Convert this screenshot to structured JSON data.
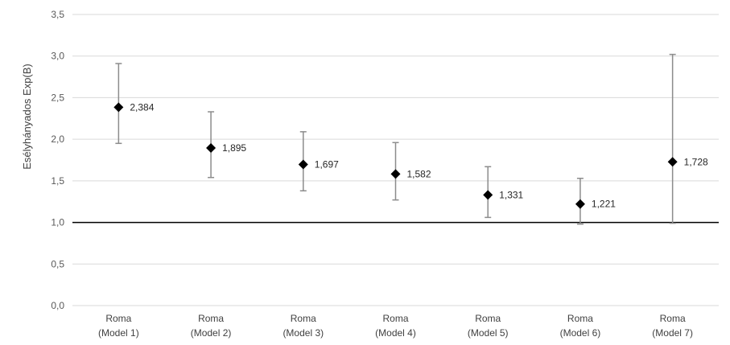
{
  "chart_data": {
    "type": "scatter",
    "subtype": "point-with-error-bars",
    "ylabel": "Esélyhányados Exp(B)",
    "ylim": [
      0,
      3.5
    ],
    "yticks": [
      0,
      0.5,
      1,
      1.5,
      2,
      2.5,
      3,
      3.5
    ],
    "ytick_labels": [
      "0,0",
      "0,5",
      "1,0",
      "1,5",
      "2,0",
      "2,5",
      "3,0",
      "3,5"
    ],
    "reference_line": 1.0,
    "grid": true,
    "legend": "none",
    "categories": [
      [
        "Roma",
        "(Model 1)"
      ],
      [
        "Roma",
        "(Model 2)"
      ],
      [
        "Roma",
        "(Model 3)"
      ],
      [
        "Roma",
        "(Model 4)"
      ],
      [
        "Roma",
        "(Model 5)"
      ],
      [
        "Roma",
        "(Model 6)"
      ],
      [
        "Roma",
        "(Model 7)"
      ]
    ],
    "values": [
      2.384,
      1.895,
      1.697,
      1.582,
      1.331,
      1.221,
      1.728
    ],
    "value_labels": [
      "2,384",
      "1,895",
      "1,697",
      "1,582",
      "1,331",
      "1,221",
      "1,728"
    ],
    "lower": [
      1.95,
      1.54,
      1.38,
      1.27,
      1.06,
      0.98,
      0.99
    ],
    "upper": [
      2.91,
      2.33,
      2.09,
      1.96,
      1.67,
      1.53,
      3.02
    ],
    "colors": {
      "marker": "#000000",
      "errorbar": "#8c8c8c",
      "grid": "#d9d9d9",
      "reference": "#000000"
    }
  }
}
